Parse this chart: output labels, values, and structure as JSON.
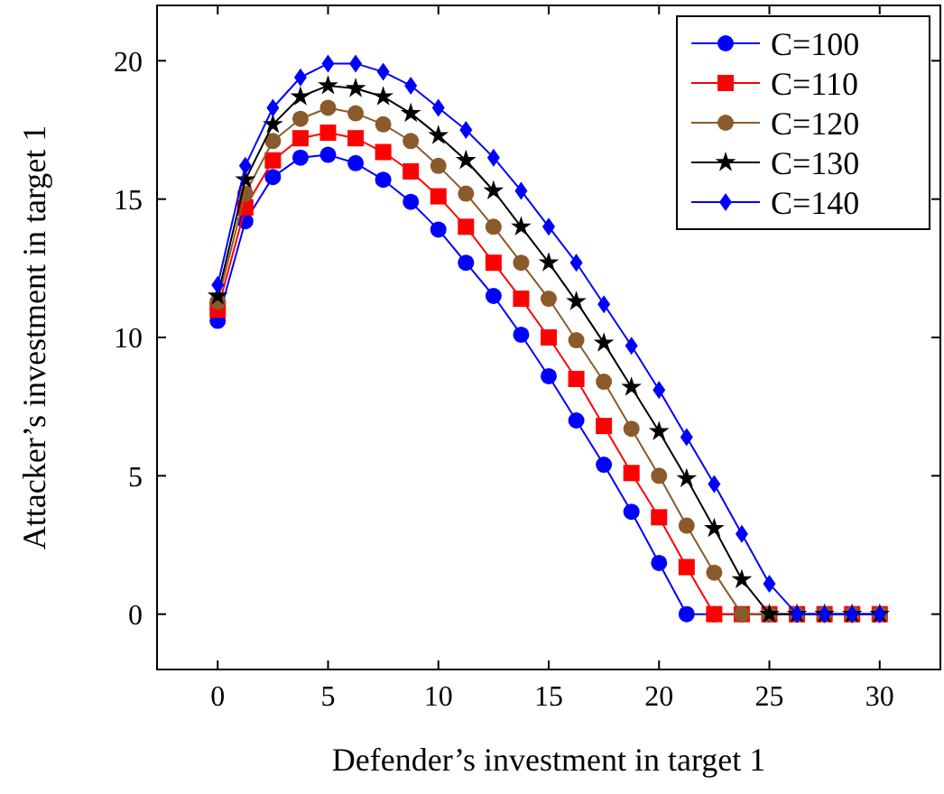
{
  "chart_data": {
    "type": "line",
    "xlabel": "Defender’s investment in target 1",
    "ylabel": "Attacker’s investment in target 1",
    "x": [
      0,
      1.25,
      2.5,
      3.75,
      5,
      6.25,
      7.5,
      8.75,
      10,
      11.25,
      12.5,
      13.75,
      15,
      16.25,
      17.5,
      18.75,
      20,
      21.25,
      22.5,
      23.75,
      25,
      26.25,
      27.5,
      28.75,
      30
    ],
    "xlim": [
      -2.75,
      32.75
    ],
    "xticks": [
      0,
      5,
      10,
      15,
      20,
      25,
      30
    ],
    "ylim": [
      -2,
      22
    ],
    "yticks": [
      0,
      5,
      10,
      15,
      20
    ],
    "grid": false,
    "legend": "top right",
    "series": [
      {
        "name": "C=100",
        "color": "#0000ff",
        "marker": "circle",
        "values": [
          10.6,
          14.2,
          15.8,
          16.5,
          16.6,
          16.3,
          15.7,
          14.9,
          13.9,
          12.7,
          11.5,
          10.1,
          8.6,
          7.0,
          5.4,
          3.7,
          1.85,
          0,
          0,
          0,
          0,
          0,
          0,
          0,
          0
        ]
      },
      {
        "name": "C=110",
        "color": "#ff0000",
        "marker": "square",
        "values": [
          11.0,
          14.7,
          16.4,
          17.2,
          17.4,
          17.2,
          16.7,
          16.0,
          15.1,
          14.0,
          12.7,
          11.4,
          10.0,
          8.5,
          6.8,
          5.1,
          3.5,
          1.7,
          0,
          0,
          0,
          0,
          0,
          0,
          0
        ]
      },
      {
        "name": "C=120",
        "color": "#8b5a2b",
        "marker": "circle",
        "values": [
          11.3,
          15.2,
          17.1,
          17.9,
          18.3,
          18.1,
          17.7,
          17.1,
          16.2,
          15.2,
          14.0,
          12.7,
          11.4,
          9.9,
          8.4,
          6.7,
          5.0,
          3.2,
          1.5,
          0,
          0,
          0,
          0,
          0,
          0
        ]
      },
      {
        "name": "C=130",
        "color": "#000000",
        "marker": "star",
        "values": [
          11.5,
          15.7,
          17.7,
          18.7,
          19.1,
          19.0,
          18.7,
          18.1,
          17.3,
          16.4,
          15.3,
          14.0,
          12.7,
          11.3,
          9.8,
          8.2,
          6.6,
          4.9,
          3.1,
          1.25,
          0,
          0,
          0,
          0,
          0
        ]
      },
      {
        "name": "C=140",
        "color": "#0000ff",
        "marker": "diamond",
        "values": [
          11.9,
          16.2,
          18.3,
          19.4,
          19.9,
          19.9,
          19.6,
          19.1,
          18.3,
          17.5,
          16.5,
          15.3,
          14.0,
          12.7,
          11.2,
          9.7,
          8.1,
          6.4,
          4.7,
          2.9,
          1.1,
          0,
          0,
          0,
          0
        ]
      }
    ]
  }
}
